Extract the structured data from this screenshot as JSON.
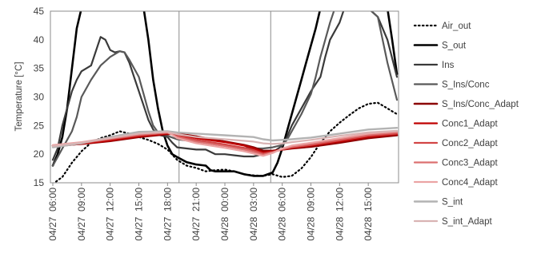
{
  "chart_data": {
    "type": "line",
    "ylabel": "Temperature [°C]",
    "ylim": [
      15,
      45
    ],
    "y_ticks": [
      15,
      20,
      25,
      30,
      35,
      40,
      45
    ],
    "x_range": [
      0,
      36
    ],
    "x_ticks": [
      {
        "label": "04/27  06:00",
        "x": 0
      },
      {
        "label": "04/27  09:00",
        "x": 3
      },
      {
        "label": "04/27  12:00",
        "x": 6
      },
      {
        "label": "04/27  15:00",
        "x": 9
      },
      {
        "label": "04/27  18:00",
        "x": 12
      },
      {
        "label": "04/27  21:00",
        "x": 15
      },
      {
        "label": "04/28  00:00",
        "x": 18
      },
      {
        "label": "04/28  03:00",
        "x": 21
      },
      {
        "label": "04/28  06:00",
        "x": 24
      },
      {
        "label": "04/28  09:00",
        "x": 27
      },
      {
        "label": "04/28  12:00",
        "x": 30
      },
      {
        "label": "04/28  15:00",
        "x": 33
      }
    ],
    "vertical_markers": [
      13.2,
      22.8
    ],
    "grid": false,
    "legend_position": "right",
    "series": [
      {
        "name": "Air_out",
        "color": "#000000",
        "dash": "dotted",
        "width": 2.2,
        "points": [
          [
            0,
            14.8
          ],
          [
            1,
            16
          ],
          [
            2,
            18.5
          ],
          [
            3,
            20.5
          ],
          [
            4,
            22
          ],
          [
            5,
            22.8
          ],
          [
            6,
            23.3
          ],
          [
            7,
            24
          ],
          [
            8,
            23.6
          ],
          [
            9,
            23
          ],
          [
            10,
            22.5
          ],
          [
            11,
            21.8
          ],
          [
            12,
            20.8
          ],
          [
            13,
            19
          ],
          [
            14,
            18
          ],
          [
            15,
            17.6
          ],
          [
            16,
            17
          ],
          [
            17,
            17.2
          ],
          [
            18,
            17.3
          ],
          [
            19,
            17
          ],
          [
            20,
            16.5
          ],
          [
            21,
            16.3
          ],
          [
            22,
            16.2
          ],
          [
            23,
            16.5
          ],
          [
            24,
            16
          ],
          [
            25,
            16.2
          ],
          [
            26,
            17.5
          ],
          [
            27,
            19.5
          ],
          [
            28,
            22
          ],
          [
            29,
            24
          ],
          [
            30,
            25.5
          ],
          [
            31,
            26.8
          ],
          [
            32,
            28
          ],
          [
            33,
            28.8
          ],
          [
            34,
            29
          ],
          [
            35,
            28
          ],
          [
            36,
            27
          ]
        ]
      },
      {
        "name": "S_out",
        "color": "#000000",
        "dash": "solid",
        "width": 2.6,
        "points": [
          [
            0,
            18
          ],
          [
            0.5,
            20
          ],
          [
            1,
            23
          ],
          [
            1.5,
            28
          ],
          [
            2,
            35
          ],
          [
            2.5,
            42
          ],
          [
            3,
            45.5
          ],
          [
            9.5,
            45.5
          ],
          [
            10,
            40
          ],
          [
            10.5,
            33
          ],
          [
            11,
            28
          ],
          [
            11.5,
            24
          ],
          [
            12,
            21.5
          ],
          [
            12.5,
            20
          ],
          [
            13,
            19.5
          ],
          [
            14,
            18.6
          ],
          [
            15,
            18.2
          ],
          [
            16,
            18
          ],
          [
            16.5,
            17.2
          ],
          [
            17,
            17
          ],
          [
            18,
            17
          ],
          [
            19,
            17
          ],
          [
            20,
            16.5
          ],
          [
            21,
            16.2
          ],
          [
            22,
            16.2
          ],
          [
            23,
            16.8
          ],
          [
            23.5,
            18.5
          ],
          [
            24,
            21
          ],
          [
            24.5,
            24
          ],
          [
            25,
            27
          ],
          [
            25.5,
            30
          ],
          [
            26,
            33
          ],
          [
            26.5,
            36
          ],
          [
            27,
            39
          ],
          [
            27.5,
            42
          ],
          [
            28,
            45.5
          ],
          [
            35,
            45.5
          ],
          [
            35.5,
            40
          ],
          [
            36,
            34
          ]
        ]
      },
      {
        "name": "Ins",
        "color": "#3a3a3a",
        "dash": "solid",
        "width": 2.2,
        "points": [
          [
            0,
            19
          ],
          [
            0.5,
            21
          ],
          [
            1,
            25
          ],
          [
            1.5,
            28
          ],
          [
            2,
            31
          ],
          [
            2.5,
            33
          ],
          [
            3,
            34.5
          ],
          [
            4,
            35.5
          ],
          [
            5,
            40.5
          ],
          [
            5.5,
            40
          ],
          [
            6,
            38.2
          ],
          [
            6.5,
            37.8
          ],
          [
            7,
            38
          ],
          [
            7.5,
            37.8
          ],
          [
            8,
            36
          ],
          [
            8.5,
            33.5
          ],
          [
            9,
            31
          ],
          [
            9.5,
            28.5
          ],
          [
            10,
            26
          ],
          [
            10.5,
            24.3
          ],
          [
            11,
            23.4
          ],
          [
            11.5,
            23.2
          ],
          [
            12,
            23
          ],
          [
            12.5,
            22
          ],
          [
            13,
            21.2
          ],
          [
            14,
            21
          ],
          [
            15,
            20.8
          ],
          [
            16,
            20.8
          ],
          [
            17,
            20
          ],
          [
            18,
            20
          ],
          [
            19,
            19.8
          ],
          [
            20,
            19.6
          ],
          [
            21,
            19.6
          ],
          [
            22,
            20
          ],
          [
            23,
            20.3
          ],
          [
            24,
            21.5
          ],
          [
            24.5,
            23
          ],
          [
            25,
            25
          ],
          [
            26,
            28
          ],
          [
            27,
            31
          ],
          [
            28,
            33.5
          ],
          [
            28.5,
            37
          ],
          [
            29,
            40
          ],
          [
            30,
            43
          ],
          [
            30.5,
            45.5
          ],
          [
            33,
            45.5
          ],
          [
            34,
            44
          ],
          [
            35,
            40
          ],
          [
            36,
            33.5
          ]
        ]
      },
      {
        "name": "S_Ins/Conc",
        "color": "#595959",
        "dash": "solid",
        "width": 2.2,
        "points": [
          [
            0,
            18
          ],
          [
            0.5,
            19.5
          ],
          [
            1,
            21
          ],
          [
            1.5,
            22.5
          ],
          [
            2,
            24
          ],
          [
            2.5,
            26.5
          ],
          [
            3,
            30
          ],
          [
            4,
            33
          ],
          [
            5,
            35.5
          ],
          [
            6,
            37
          ],
          [
            7,
            38
          ],
          [
            7.5,
            37.8
          ],
          [
            8,
            36.5
          ],
          [
            9,
            33.5
          ],
          [
            9.5,
            30.5
          ],
          [
            10,
            27.5
          ],
          [
            10.5,
            25
          ],
          [
            11,
            23.8
          ],
          [
            12,
            23.2
          ],
          [
            13,
            22.6
          ],
          [
            14,
            22.4
          ],
          [
            15,
            22.2
          ],
          [
            16,
            22
          ],
          [
            17,
            21.7
          ],
          [
            18,
            21.5
          ],
          [
            19,
            21.3
          ],
          [
            20,
            21.1
          ],
          [
            21,
            21
          ],
          [
            22,
            21
          ],
          [
            23,
            21.2
          ],
          [
            24,
            21.6
          ],
          [
            24.5,
            22.5
          ],
          [
            25,
            24
          ],
          [
            26,
            27
          ],
          [
            27,
            30.5
          ],
          [
            27.5,
            33.5
          ],
          [
            28,
            37
          ],
          [
            28.5,
            40
          ],
          [
            29,
            43
          ],
          [
            29.5,
            45.5
          ],
          [
            33,
            45.5
          ],
          [
            34,
            44
          ],
          [
            35,
            36
          ],
          [
            36,
            29.5
          ]
        ]
      },
      {
        "name": "S_Ins/Conc_Adapt",
        "color": "#8b0000",
        "dash": "solid",
        "width": 2.6,
        "points": [
          [
            0,
            21.5
          ],
          [
            3,
            21.8
          ],
          [
            6,
            22.3
          ],
          [
            9,
            23
          ],
          [
            12,
            23.5
          ],
          [
            13,
            23.6
          ],
          [
            15,
            23.1
          ],
          [
            18,
            22.2
          ],
          [
            20,
            21.6
          ],
          [
            21,
            21.2
          ],
          [
            22,
            20.6
          ],
          [
            23,
            20.6
          ],
          [
            24,
            20.8
          ],
          [
            25,
            21
          ],
          [
            27,
            21.3
          ],
          [
            30,
            22
          ],
          [
            33,
            22.8
          ],
          [
            36,
            23.3
          ]
        ]
      },
      {
        "name": "Conc1_Adapt",
        "color": "#c00000",
        "dash": "solid",
        "width": 2.2,
        "points": [
          [
            0,
            21.3
          ],
          [
            3,
            21.8
          ],
          [
            6,
            22.4
          ],
          [
            9,
            23.1
          ],
          [
            12,
            23.6
          ],
          [
            13,
            23.4
          ],
          [
            15,
            22.8
          ],
          [
            18,
            22.1
          ],
          [
            20,
            21.5
          ],
          [
            21,
            21
          ],
          [
            22,
            20.3
          ],
          [
            23,
            20.5
          ],
          [
            24,
            20.8
          ],
          [
            25,
            21.1
          ],
          [
            27,
            21.5
          ],
          [
            30,
            22.2
          ],
          [
            33,
            23
          ],
          [
            36,
            23.5
          ]
        ]
      },
      {
        "name": "Conc2_Adapt",
        "color": "#d24545",
        "dash": "solid",
        "width": 2.2,
        "points": [
          [
            0,
            21.4
          ],
          [
            3,
            21.9
          ],
          [
            6,
            22.6
          ],
          [
            9,
            23.3
          ],
          [
            12,
            23.7
          ],
          [
            13,
            23.2
          ],
          [
            15,
            22.5
          ],
          [
            18,
            21.7
          ],
          [
            20,
            21.1
          ],
          [
            21,
            20.7
          ],
          [
            22,
            20.1
          ],
          [
            23,
            20.4
          ],
          [
            24,
            20.8
          ],
          [
            25,
            21.2
          ],
          [
            27,
            21.6
          ],
          [
            30,
            22.4
          ],
          [
            33,
            23.2
          ],
          [
            36,
            23.6
          ]
        ]
      },
      {
        "name": "Conc3_Adapt",
        "color": "#dc7070",
        "dash": "solid",
        "width": 2.2,
        "points": [
          [
            0,
            21.5
          ],
          [
            3,
            22
          ],
          [
            6,
            22.7
          ],
          [
            9,
            23.4
          ],
          [
            12,
            23.8
          ],
          [
            13,
            23
          ],
          [
            15,
            22.2
          ],
          [
            18,
            21.4
          ],
          [
            20,
            20.8
          ],
          [
            21,
            20.4
          ],
          [
            22,
            19.9
          ],
          [
            23,
            20.3
          ],
          [
            24,
            20.9
          ],
          [
            25,
            21.3
          ],
          [
            27,
            21.8
          ],
          [
            30,
            22.6
          ],
          [
            33,
            23.4
          ],
          [
            36,
            23.8
          ]
        ]
      },
      {
        "name": "Conc4_Adapt",
        "color": "#eba4a4",
        "dash": "solid",
        "width": 2.2,
        "points": [
          [
            0,
            21.6
          ],
          [
            3,
            22.1
          ],
          [
            6,
            22.9
          ],
          [
            9,
            23.6
          ],
          [
            12,
            23.9
          ],
          [
            13,
            22.8
          ],
          [
            15,
            21.9
          ],
          [
            18,
            21.1
          ],
          [
            20,
            20.5
          ],
          [
            21,
            20.1
          ],
          [
            22,
            19.7
          ],
          [
            23,
            20.2
          ],
          [
            24,
            21
          ],
          [
            25,
            21.5
          ],
          [
            27,
            22
          ],
          [
            30,
            22.8
          ],
          [
            33,
            23.6
          ],
          [
            36,
            24
          ]
        ]
      },
      {
        "name": "S_int",
        "color": "#b3b3b3",
        "dash": "solid",
        "width": 2.4,
        "points": [
          [
            0,
            21.2
          ],
          [
            3,
            21.9
          ],
          [
            6,
            23
          ],
          [
            9,
            23.9
          ],
          [
            12,
            24
          ],
          [
            13,
            23.8
          ],
          [
            15,
            23.6
          ],
          [
            18,
            23.3
          ],
          [
            21,
            23
          ],
          [
            22,
            22.6
          ],
          [
            23,
            22.4
          ],
          [
            24,
            22.5
          ],
          [
            25,
            22.6
          ],
          [
            27,
            22.9
          ],
          [
            30,
            23.6
          ],
          [
            33,
            24.3
          ],
          [
            36,
            24.6
          ]
        ]
      },
      {
        "name": "S_int_Adapt",
        "color": "#d9b3b3",
        "dash": "solid",
        "width": 2.2,
        "points": [
          [
            0,
            21.4
          ],
          [
            3,
            22
          ],
          [
            6,
            22.8
          ],
          [
            9,
            23.6
          ],
          [
            12,
            23.9
          ],
          [
            13,
            23.5
          ],
          [
            15,
            23
          ],
          [
            18,
            22.6
          ],
          [
            21,
            22.2
          ],
          [
            22,
            21.9
          ],
          [
            23,
            21.8
          ],
          [
            24,
            21.9
          ],
          [
            25,
            22.1
          ],
          [
            27,
            22.5
          ],
          [
            30,
            23.2
          ],
          [
            33,
            23.8
          ],
          [
            36,
            24.1
          ]
        ]
      }
    ]
  }
}
